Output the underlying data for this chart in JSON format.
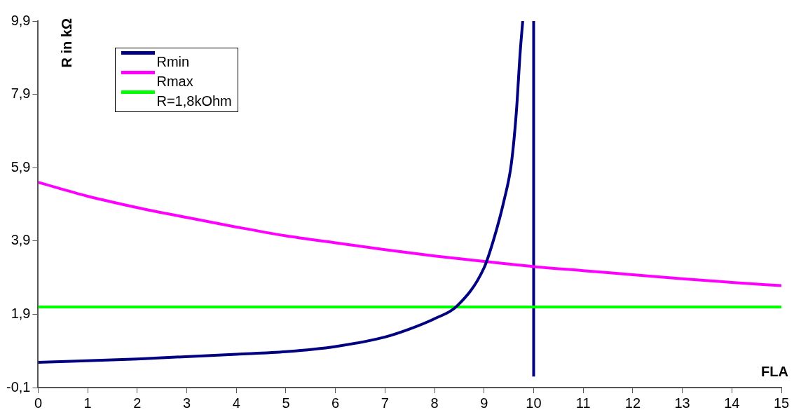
{
  "chart_data": {
    "type": "line",
    "xlabel": "FLA",
    "ylabel": "R in kΩ",
    "xlim": [
      0,
      15
    ],
    "xticks": [
      0,
      1,
      2,
      3,
      4,
      5,
      6,
      7,
      8,
      9,
      10,
      11,
      12,
      13,
      14,
      15
    ],
    "ylim": [
      -0.1,
      9.9
    ],
    "yticks": [
      {
        "value": -0.1,
        "label": "-0,1"
      },
      {
        "value": 1.9,
        "label": "1,9"
      },
      {
        "value": 3.9,
        "label": "3,9"
      },
      {
        "value": 5.9,
        "label": "5,9"
      },
      {
        "value": 7.9,
        "label": "7,9"
      },
      {
        "value": 9.9,
        "label": "9,9"
      }
    ],
    "grid": false,
    "legend": "top left",
    "marker": "none",
    "line_style": "solid",
    "series": [
      {
        "name": "Rmin",
        "color": "#000080",
        "x": [
          0,
          2,
          4,
          5,
          6,
          7,
          7.5,
          8,
          8.45,
          9,
          9.2,
          9.4,
          9.55,
          9.65,
          9.73,
          9.78
        ],
        "values": [
          0.59,
          0.68,
          0.81,
          0.88,
          1.02,
          1.28,
          1.5,
          1.78,
          2.12,
          3.17,
          3.97,
          4.99,
          6.01,
          7.4,
          9.08,
          9.9
        ]
      },
      {
        "name": "Rmax",
        "color": "#ff00ff",
        "x": [
          0,
          1,
          2,
          3,
          4,
          5,
          6,
          7,
          8,
          9,
          10,
          11,
          12,
          13,
          14,
          15
        ],
        "values": [
          5.5,
          5.12,
          4.81,
          4.54,
          4.28,
          4.04,
          3.85,
          3.66,
          3.49,
          3.34,
          3.2,
          3.09,
          2.98,
          2.87,
          2.77,
          2.68
        ]
      },
      {
        "name": "R=1,8kOhm",
        "color": "#00ff00",
        "x": [
          0,
          15
        ],
        "values": [
          2.1,
          2.1
        ]
      },
      {
        "color": "#000080",
        "x": [
          10,
          10
        ],
        "values": [
          9.9,
          0.2
        ]
      }
    ]
  }
}
